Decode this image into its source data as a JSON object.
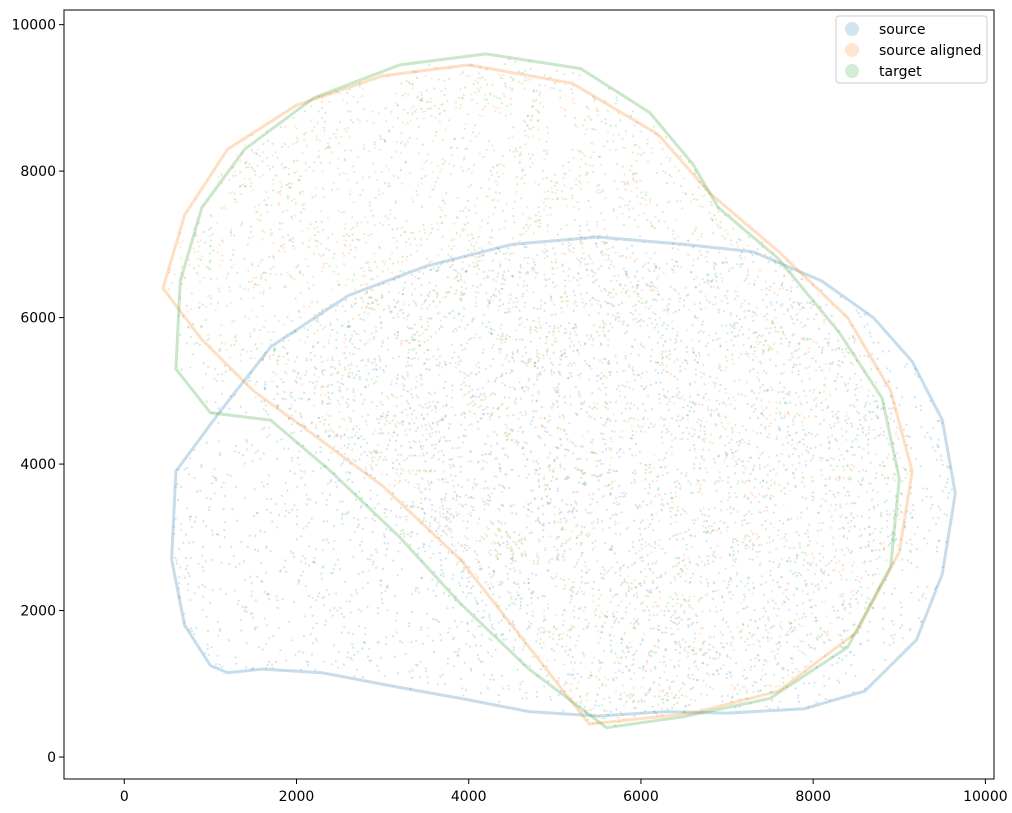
{
  "chart_data": {
    "type": "scatter",
    "title": "",
    "xlabel": "",
    "ylabel": "",
    "xlim": [
      -700,
      10100
    ],
    "ylim": [
      -300,
      10200
    ],
    "xticks": [
      0,
      2000,
      4000,
      6000,
      8000,
      10000
    ],
    "yticks": [
      0,
      2000,
      4000,
      6000,
      8000,
      10000
    ],
    "xtick_labels": [
      "0",
      "2000",
      "4000",
      "6000",
      "8000",
      "10000"
    ],
    "ytick_labels": [
      "0",
      "2000",
      "4000",
      "6000",
      "8000",
      "10000"
    ],
    "grid": false,
    "legend_position": "top-right",
    "series": [
      {
        "name": "source",
        "color": "#1f77b4",
        "alpha": 0.2,
        "approx_extent": {
          "x": [
            550,
            9650
          ],
          "y": [
            250,
            7100
          ]
        },
        "outline": [
          [
            1000,
            1250
          ],
          [
            1200,
            1150
          ],
          [
            1600,
            1200
          ],
          [
            2300,
            1150
          ],
          [
            3200,
            950
          ],
          [
            4000,
            780
          ],
          [
            4700,
            620
          ],
          [
            5500,
            560
          ],
          [
            6300,
            620
          ],
          [
            7000,
            600
          ],
          [
            7900,
            660
          ],
          [
            8600,
            900
          ],
          [
            9200,
            1600
          ],
          [
            9500,
            2500
          ],
          [
            9650,
            3600
          ],
          [
            9500,
            4600
          ],
          [
            9150,
            5400
          ],
          [
            8700,
            6000
          ],
          [
            8100,
            6500
          ],
          [
            7300,
            6900
          ],
          [
            6500,
            7000
          ],
          [
            5500,
            7100
          ],
          [
            4500,
            7000
          ],
          [
            3500,
            6700
          ],
          [
            2600,
            6300
          ],
          [
            1700,
            5600
          ],
          [
            1100,
            4700
          ],
          [
            600,
            3900
          ],
          [
            550,
            2700
          ],
          [
            700,
            1800
          ]
        ]
      },
      {
        "name": "source aligned",
        "color": "#ff7f0e",
        "alpha": 0.2,
        "approx_extent": {
          "x": [
            450,
            9150
          ],
          "y": [
            400,
            9450
          ]
        },
        "outline": [
          [
            5400,
            450
          ],
          [
            6600,
            600
          ],
          [
            7600,
            900
          ],
          [
            8500,
            1700
          ],
          [
            9000,
            2800
          ],
          [
            9150,
            3900
          ],
          [
            8900,
            5000
          ],
          [
            8400,
            6000
          ],
          [
            7600,
            6900
          ],
          [
            6800,
            7700
          ],
          [
            6200,
            8500
          ],
          [
            5200,
            9200
          ],
          [
            4000,
            9450
          ],
          [
            3000,
            9300
          ],
          [
            2000,
            8900
          ],
          [
            1200,
            8300
          ],
          [
            700,
            7400
          ],
          [
            450,
            6400
          ],
          [
            900,
            5700
          ],
          [
            1500,
            5000
          ],
          [
            2200,
            4400
          ],
          [
            3000,
            3700
          ],
          [
            3900,
            2700
          ],
          [
            4700,
            1500
          ]
        ]
      },
      {
        "name": "target",
        "color": "#2ca02c",
        "alpha": 0.2,
        "approx_extent": {
          "x": [
            600,
            9000
          ],
          "y": [
            300,
            9600
          ]
        },
        "outline": [
          [
            5600,
            400
          ],
          [
            6500,
            550
          ],
          [
            7500,
            800
          ],
          [
            8400,
            1500
          ],
          [
            8900,
            2600
          ],
          [
            9000,
            3800
          ],
          [
            8800,
            4900
          ],
          [
            8300,
            5800
          ],
          [
            7600,
            6800
          ],
          [
            6900,
            7500
          ],
          [
            6600,
            8100
          ],
          [
            6100,
            8800
          ],
          [
            5300,
            9400
          ],
          [
            4200,
            9600
          ],
          [
            3200,
            9450
          ],
          [
            2200,
            9000
          ],
          [
            1400,
            8300
          ],
          [
            900,
            7500
          ],
          [
            650,
            6500
          ],
          [
            600,
            5300
          ],
          [
            1000,
            4700
          ],
          [
            1700,
            4600
          ],
          [
            2400,
            3900
          ],
          [
            3200,
            3000
          ],
          [
            3900,
            2100
          ],
          [
            4700,
            1200
          ]
        ]
      }
    ]
  },
  "legend": {
    "items": [
      {
        "label": "source",
        "color": "#1f77b4"
      },
      {
        "label": "source aligned",
        "color": "#ff7f0e"
      },
      {
        "label": "target",
        "color": "#2ca02c"
      }
    ]
  }
}
